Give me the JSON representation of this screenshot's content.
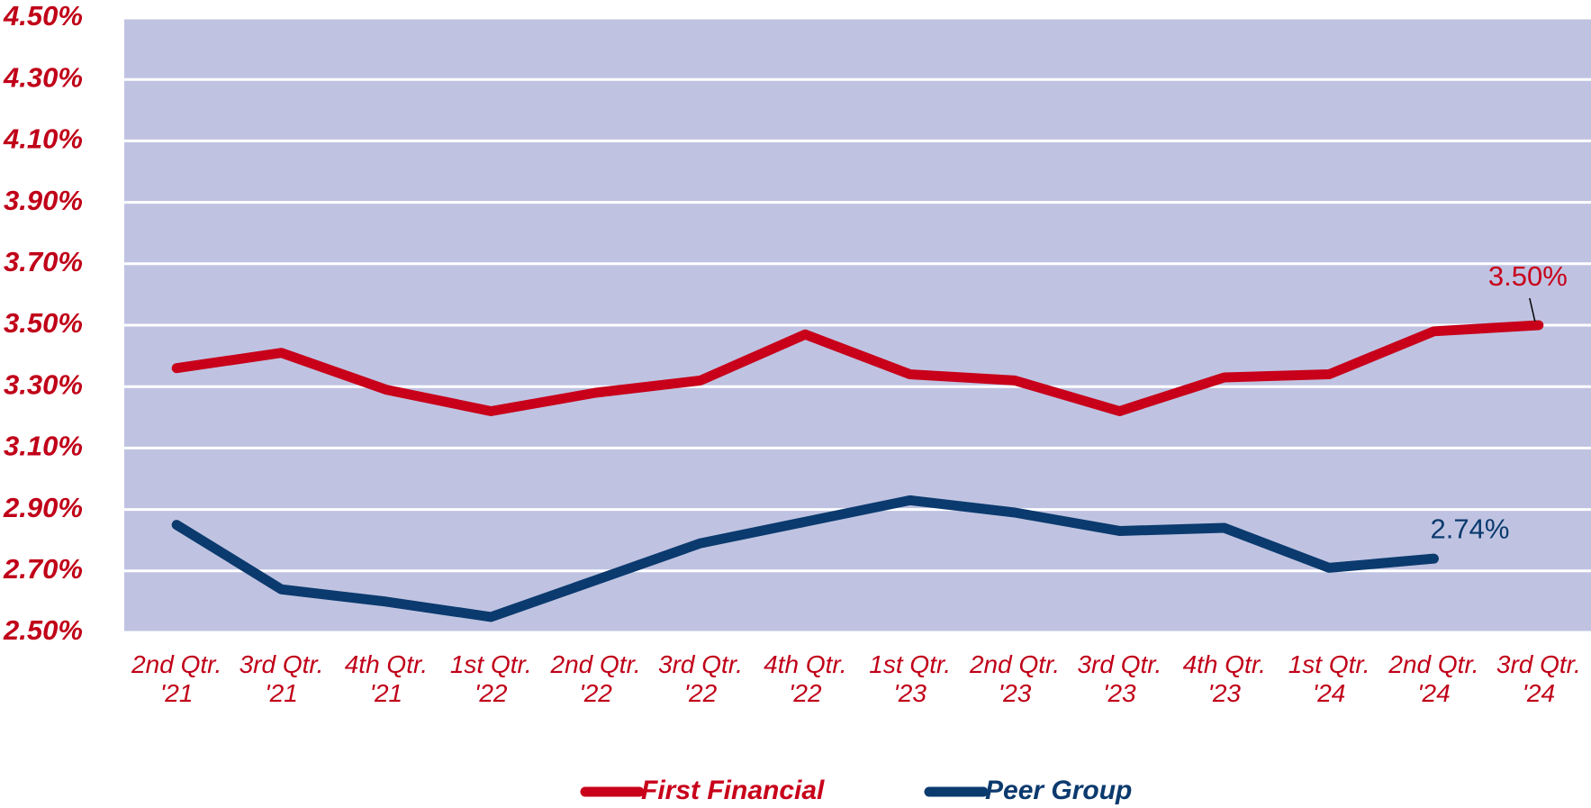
{
  "chart_data": {
    "type": "line",
    "categories": [
      "2nd Qtr. '21",
      "3rd Qtr. '21",
      "4th Qtr. '21",
      "1st Qtr. '22",
      "2nd Qtr. '22",
      "3rd Qtr. '22",
      "4th Qtr. '22",
      "1st Qtr. '23",
      "2nd Qtr. '23",
      "3rd Qtr. '23",
      "4th Qtr. '23",
      "1st Qtr. '24",
      "2nd Qtr. '24",
      "3rd Qtr. '24"
    ],
    "series": [
      {
        "name": "First Financial",
        "color": "#c8001a",
        "values": [
          3.36,
          3.41,
          3.29,
          3.22,
          3.28,
          3.32,
          3.47,
          3.34,
          3.32,
          3.22,
          3.33,
          3.34,
          3.48,
          3.5
        ],
        "value_labels": [
          null,
          null,
          null,
          null,
          null,
          null,
          null,
          null,
          null,
          null,
          null,
          null,
          null,
          "3.50%"
        ]
      },
      {
        "name": "Peer Group",
        "color": "#0b3a6e",
        "values": [
          2.85,
          2.64,
          2.6,
          2.55,
          2.67,
          2.79,
          2.86,
          2.93,
          2.89,
          2.83,
          2.84,
          2.71,
          2.74,
          null
        ],
        "value_labels": [
          null,
          null,
          null,
          null,
          null,
          null,
          null,
          null,
          null,
          null,
          null,
          null,
          "2.74%",
          null
        ]
      }
    ],
    "ylim": [
      2.5,
      4.5
    ],
    "yticks": [
      {
        "value": 2.5,
        "label": "2.50%"
      },
      {
        "value": 2.7,
        "label": "2.70%"
      },
      {
        "value": 2.9,
        "label": "2.90%"
      },
      {
        "value": 3.1,
        "label": "3.10%"
      },
      {
        "value": 3.3,
        "label": "3.30%"
      },
      {
        "value": 3.5,
        "label": "3.50%"
      },
      {
        "value": 3.7,
        "label": "3.70%"
      },
      {
        "value": 3.9,
        "label": "3.90%"
      },
      {
        "value": 4.1,
        "label": "4.10%"
      },
      {
        "value": 4.3,
        "label": "4.30%"
      },
      {
        "value": 4.5,
        "label": "4.50%"
      }
    ],
    "grid": true,
    "plot_background": "#bfc3e1",
    "legend": "bottom"
  }
}
